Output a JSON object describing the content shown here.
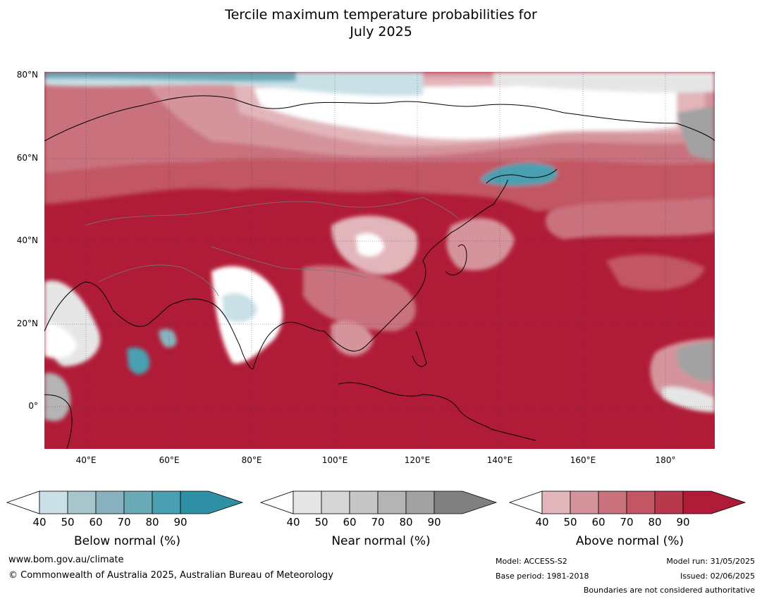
{
  "title": {
    "line1": "Tercile maximum temperature probabilities for",
    "line2": "July 2025"
  },
  "map": {
    "lat_labels": [
      "80°N",
      "60°N",
      "40°N",
      "20°N",
      "0°"
    ],
    "lon_labels": [
      "40°E",
      "60°E",
      "80°E",
      "100°E",
      "120°E",
      "140°E",
      "160°E",
      "180°"
    ],
    "lat_range": [
      -10,
      80
    ],
    "lon_range": [
      30,
      192
    ]
  },
  "legends": [
    {
      "name": "below",
      "label": "Below normal (%)",
      "ticks": [
        "40",
        "50",
        "60",
        "70",
        "80",
        "90"
      ],
      "colors": [
        "#c8e0e6",
        "#a6c6cc",
        "#88b3be",
        "#6aaab7",
        "#4aa0b1",
        "#2f8fa4"
      ]
    },
    {
      "name": "near",
      "label": "Near normal (%)",
      "ticks": [
        "40",
        "50",
        "60",
        "70",
        "80",
        "90"
      ],
      "colors": [
        "#e6e6e6",
        "#d6d6d6",
        "#c6c6c6",
        "#b4b4b4",
        "#a2a2a2",
        "#808080"
      ]
    },
    {
      "name": "above",
      "label": "Above normal (%)",
      "ticks": [
        "40",
        "50",
        "60",
        "70",
        "80",
        "90"
      ],
      "colors": [
        "#e2b5bb",
        "#d5949c",
        "#c9727e",
        "#c25664",
        "#b8394b",
        "#b01c37"
      ]
    }
  ],
  "footer": {
    "url": "www.bom.gov.au/climate",
    "copyright": "© Commonwealth of Australia 2025, Australian Bureau of Meteorology",
    "model": "Model: ACCESS-S2",
    "base_period": "Base period: 1981-2018",
    "model_run": "Model run: 31/05/2025",
    "issued": "Issued: 02/06/2025",
    "disclaimer": "Boundaries are not considered authoritative"
  }
}
